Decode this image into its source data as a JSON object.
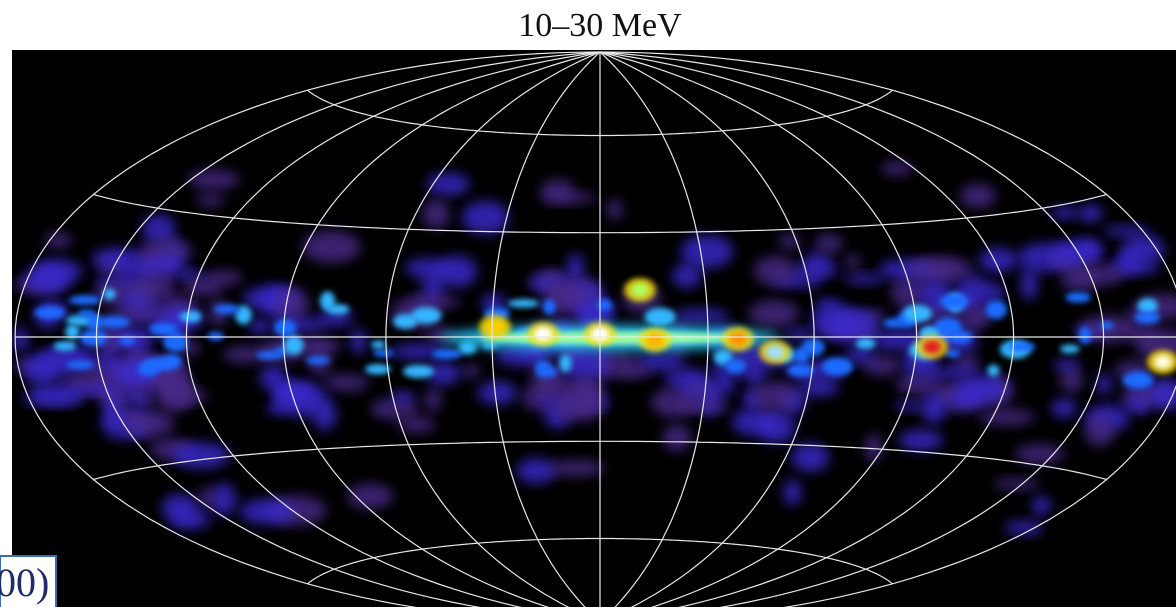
{
  "figure": {
    "title": "10–30 MeV",
    "caption_fragment": "00)"
  }
}
